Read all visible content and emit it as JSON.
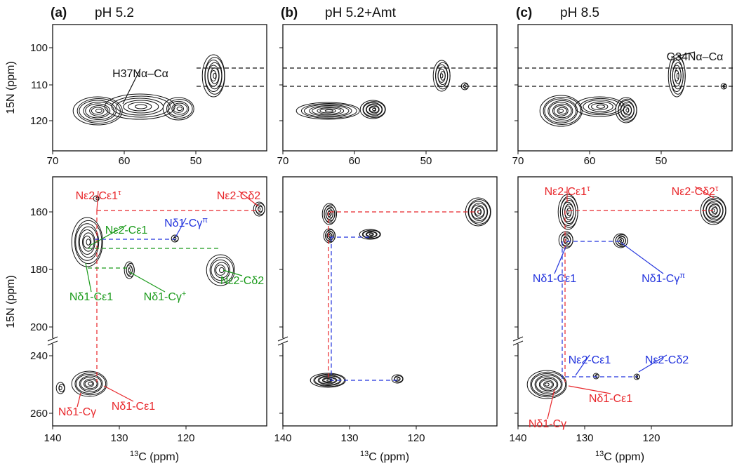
{
  "axes": {
    "y_label": "15N (ppm)",
    "x_label": {
      "sup": "13",
      "text": "C (ppm)"
    },
    "top_x_ticks": [
      "70",
      "60",
      "50"
    ],
    "top_y_ticks": [
      "100",
      "110",
      "120"
    ],
    "bottom_x_ticks": [
      "140",
      "130",
      "120"
    ],
    "bottom_y_ticks": [
      "160",
      "180",
      "200",
      "240",
      "260"
    ]
  },
  "panels": [
    {
      "label": "(a)",
      "title": "pH 5.2",
      "annotations": [
        {
          "text": "H37Nα–Cα",
          "color": "#111111"
        },
        {
          "text": "Nε2-Cε1",
          "sup": "τ",
          "color": "#e8262a"
        },
        {
          "text": "Nε2-Cδ2",
          "color": "#e8262a"
        },
        {
          "text": "Nδ1-Cγ",
          "sup": "π",
          "color": "#2233dd"
        },
        {
          "text": "Nε2-Cε1",
          "color": "#1a9a1a"
        },
        {
          "text": "Nδ1-Cε1",
          "color": "#1a9a1a"
        },
        {
          "text": "Nδ1-Cγ",
          "sup": "+",
          "color": "#1a9a1a"
        },
        {
          "text": "Nε2-Cδ2",
          "color": "#1a9a1a"
        },
        {
          "text": "Nδ1-Cγ",
          "color": "#e8262a"
        },
        {
          "text": "Nδ1-Cε1",
          "color": "#e8262a"
        }
      ]
    },
    {
      "label": "(b)",
      "title": "pH 5.2+Amt",
      "annotations": []
    },
    {
      "label": "(c)",
      "title": "pH 8.5",
      "annotations": [
        {
          "text": "G34Nα–Cα",
          "color": "#111111"
        },
        {
          "text": "Nε2-Cε1",
          "sup": "τ",
          "color": "#e8262a"
        },
        {
          "text": "Nε2-Cδ2",
          "sup": "τ",
          "color": "#e8262a"
        },
        {
          "text": "Nδ1-Cε1",
          "color": "#2233dd"
        },
        {
          "text": "Nδ1-Cγ",
          "sup": "π",
          "color": "#2233dd"
        },
        {
          "text": "Nε2-Cε1",
          "color": "#2233dd"
        },
        {
          "text": "Nε2-Cδ2",
          "color": "#2233dd"
        },
        {
          "text": "Nδ1-Cγ",
          "color": "#e8262a"
        },
        {
          "text": "Nδ1-Cε1",
          "color": "#e8262a"
        }
      ]
    }
  ]
}
